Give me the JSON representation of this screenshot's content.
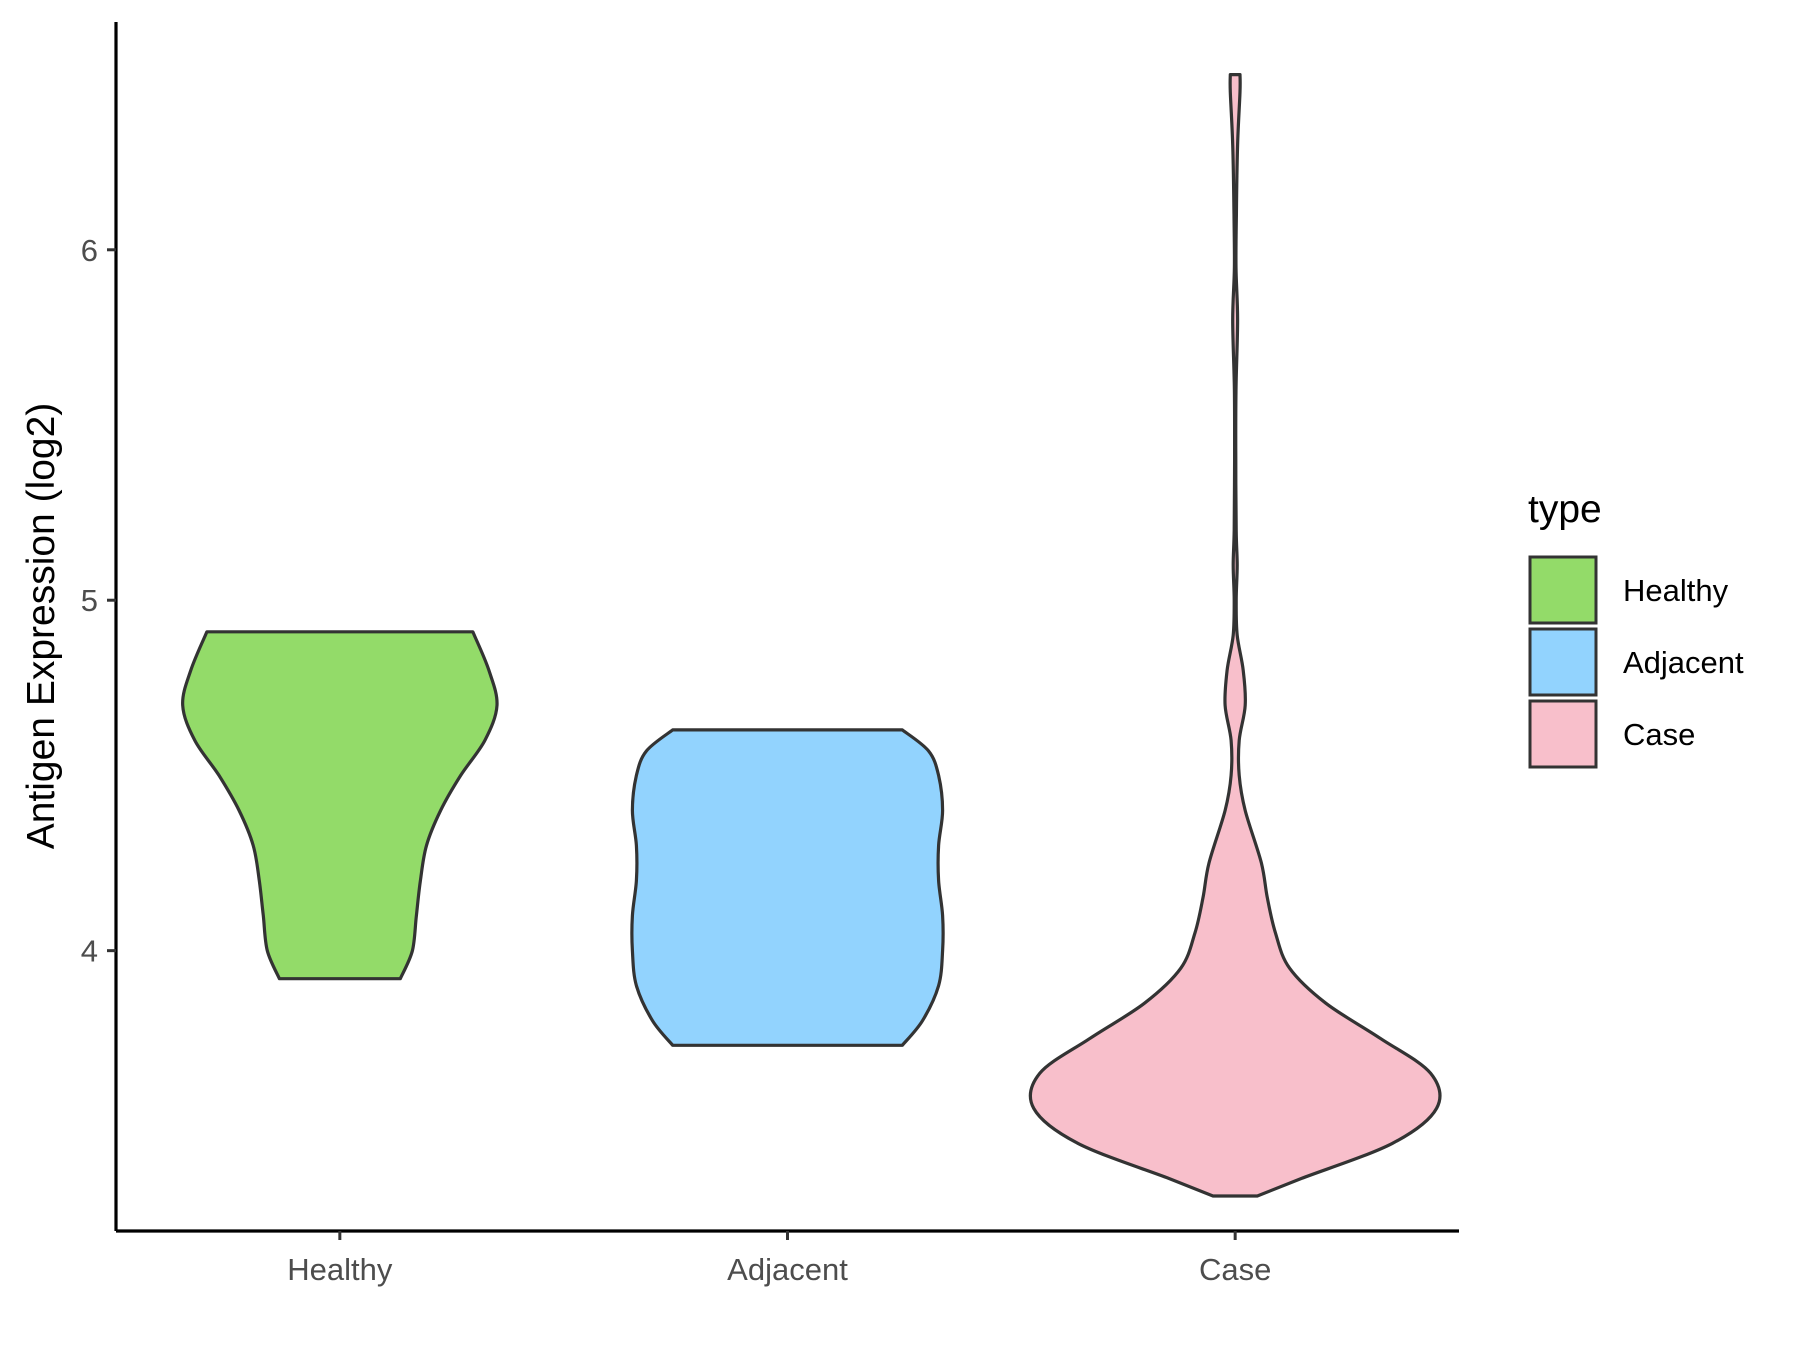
{
  "chart_data": {
    "type": "violin",
    "title": "",
    "xlabel": "",
    "ylabel": "Antigen Expression (log2)",
    "ylim": [
      3.2,
      6.65
    ],
    "yticks": [
      4,
      5,
      6
    ],
    "categories": [
      "Healthy",
      "Adjacent",
      "Case"
    ],
    "legend": {
      "title": "type",
      "position": "right"
    },
    "grid": false,
    "series": [
      {
        "name": "Healthy",
        "color": "#93DB69",
        "min": 3.92,
        "max": 4.91,
        "density": [
          [
            3.92,
            0.3
          ],
          [
            4.0,
            0.36
          ],
          [
            4.1,
            0.38
          ],
          [
            4.2,
            0.4
          ],
          [
            4.3,
            0.43
          ],
          [
            4.4,
            0.5
          ],
          [
            4.5,
            0.6
          ],
          [
            4.6,
            0.72
          ],
          [
            4.7,
            0.78
          ],
          [
            4.8,
            0.74
          ],
          [
            4.91,
            0.66
          ]
        ]
      },
      {
        "name": "Adjacent",
        "color": "#92D3FE",
        "min": 3.73,
        "max": 4.63,
        "density": [
          [
            3.73,
            0.57
          ],
          [
            3.8,
            0.67
          ],
          [
            3.9,
            0.75
          ],
          [
            4.0,
            0.77
          ],
          [
            4.1,
            0.77
          ],
          [
            4.2,
            0.75
          ],
          [
            4.3,
            0.75
          ],
          [
            4.4,
            0.77
          ],
          [
            4.5,
            0.75
          ],
          [
            4.57,
            0.7
          ],
          [
            4.63,
            0.57
          ]
        ]
      },
      {
        "name": "Case",
        "color": "#F8BFCB",
        "min": 3.3,
        "max": 6.5,
        "density": [
          [
            3.3,
            0.11
          ],
          [
            3.35,
            0.33
          ],
          [
            3.45,
            0.78
          ],
          [
            3.55,
            1.0
          ],
          [
            3.65,
            0.97
          ],
          [
            3.75,
            0.72
          ],
          [
            3.85,
            0.45
          ],
          [
            3.95,
            0.27
          ],
          [
            4.05,
            0.2
          ],
          [
            4.15,
            0.16
          ],
          [
            4.25,
            0.13
          ],
          [
            4.4,
            0.05
          ],
          [
            4.5,
            0.02
          ],
          [
            4.6,
            0.02
          ],
          [
            4.7,
            0.05
          ],
          [
            4.8,
            0.04
          ],
          [
            4.9,
            0.01
          ],
          [
            5.0,
            0.005
          ],
          [
            5.1,
            0.01
          ],
          [
            5.2,
            0.005
          ],
          [
            5.4,
            0.003
          ],
          [
            5.6,
            0.004
          ],
          [
            5.8,
            0.012
          ],
          [
            5.95,
            0.004
          ],
          [
            6.1,
            0.006
          ],
          [
            6.3,
            0.012
          ],
          [
            6.45,
            0.024
          ],
          [
            6.5,
            0.024
          ]
        ]
      }
    ]
  }
}
